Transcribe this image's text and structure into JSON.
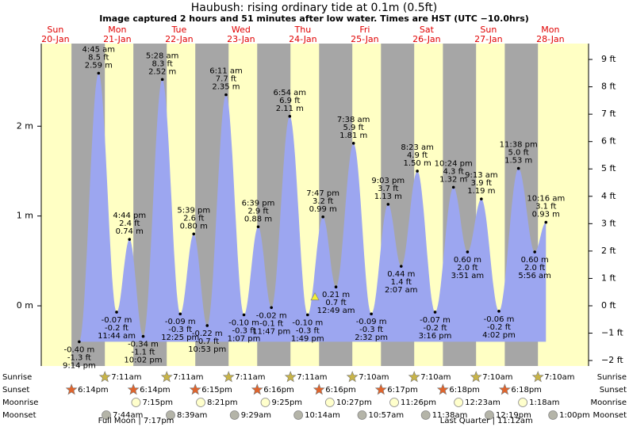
{
  "chart_data": {
    "type": "tide",
    "title": "Haubush: rising  ordinary tide at 0.1m (0.5ft)",
    "subtitle": "Image captured 2 hours and 51 minutes after low water. Times are HST (UTC −10.0hrs)",
    "day_names": [
      "Sun",
      "Mon",
      "Tue",
      "Wed",
      "Thu",
      "Fri",
      "Sat",
      "Sun",
      "Mon"
    ],
    "day_dates": [
      "20-Jan",
      "21-Jan",
      "22-Jan",
      "23-Jan",
      "24-Jan",
      "25-Jan",
      "26-Jan",
      "27-Jan",
      "28-Jan"
    ],
    "x": [
      21.23,
      28.75,
      35.73,
      40.73,
      46.03,
      53.47,
      60.42,
      65.65,
      70.88,
      78.18,
      85.12,
      90.65,
      95.78,
      102.9,
      109.82,
      115.78,
      120.82,
      127.63,
      134.53,
      141.05,
      146.12,
      152.38,
      159.27,
      166.4,
      171.85,
      177.22,
      184.03,
      191.63,
      197.93,
      202.27
    ],
    "values": [
      -0.4,
      2.59,
      -0.07,
      0.74,
      -0.34,
      2.52,
      -0.09,
      0.8,
      -0.22,
      2.35,
      -0.1,
      0.88,
      -0.02,
      2.11,
      -0.1,
      0.99,
      0.21,
      1.81,
      -0.09,
      1.13,
      0.44,
      1.5,
      -0.07,
      1.32,
      0.6,
      1.19,
      -0.06,
      1.53,
      0.6,
      0.93
    ],
    "value_labels": [
      "-0.40 m",
      "2.59 m",
      "-0.07 m",
      "0.74 m",
      "-0.34 m",
      "2.52 m",
      "-0.09 m",
      "0.80 m",
      "-0.22 m",
      "2.35 m",
      "-0.10 m",
      "0.88 m",
      "-0.02 m",
      "2.11 m",
      "-0.10 m",
      "0.99 m",
      "0.21 m",
      "1.81 m",
      "-0.09 m",
      "1.13 m",
      "0.44 m",
      "1.50 m",
      "-0.07 m",
      "1.32 m",
      "0.60 m",
      "1.19 m",
      "-0.06 m",
      "1.53 m",
      "0.60 m",
      "0.93 m"
    ],
    "feet_labels": [
      "-1.3 ft",
      "8.5 ft",
      "-0.2 ft",
      "2.4 ft",
      "-1.1 ft",
      "8.3 ft",
      "-0.3 ft",
      "2.6 ft",
      "-0.7 ft",
      "7.7 ft",
      "-0.3 ft",
      "2.9 ft",
      "-0.1 ft",
      "6.9 ft",
      "-0.3 ft",
      "3.2 ft",
      "0.7 ft",
      "5.9 ft",
      "-0.3 ft",
      "3.7 ft",
      "1.4 ft",
      "4.9 ft",
      "-0.2 ft",
      "4.3 ft",
      "2.0 ft",
      "3.9 ft",
      "-0.2 ft",
      "5.0 ft",
      "2.0 ft",
      "3.1 ft"
    ],
    "time_labels": [
      "9:14 pm",
      "4:45 am",
      "11:44 am",
      "4:44 pm",
      "10:02 pm",
      "5:28 am",
      "12:25 pm",
      "5:39 pm",
      "10:53 pm",
      "6:11 am",
      "1:07 pm",
      "6:39 pm",
      "11:47 pm",
      "6:54 am",
      "1:49 pm",
      "7:47 pm",
      "12:49 am",
      "7:38 am",
      "2:32 pm",
      "9:03 pm",
      "2:07 am",
      "8:23 am",
      "3:16 pm",
      "10:24 pm",
      "3:51 am",
      "9:13 am",
      "4:02 pm",
      "11:38 pm",
      "5:56 am",
      "10:16 am"
    ],
    "color": "#9ca6f0",
    "day_color": "#ffffc4",
    "night_color": "#a6a6a6",
    "xlim": [
      6.5,
      218.8
    ],
    "ylim": [
      -0.67,
      2.92
    ],
    "yticks": [
      {
        "value": 0,
        "label": "0 m"
      },
      {
        "value": 1,
        "label": "1 m"
      },
      {
        "value": 2,
        "label": "2 m"
      }
    ],
    "y2lim": [
      -2.2,
      9.58
    ],
    "y2ticks": [
      {
        "value": -2,
        "label": "−2 ft"
      },
      {
        "value": -1,
        "label": "−1 ft"
      },
      {
        "value": 0,
        "label": "0 ft"
      },
      {
        "value": 1,
        "label": "1 ft"
      },
      {
        "value": 2,
        "label": "2 ft"
      },
      {
        "value": 3,
        "label": "3 ft"
      },
      {
        "value": 4,
        "label": "4 ft"
      },
      {
        "value": 5,
        "label": "5 ft"
      },
      {
        "value": 6,
        "label": "6 ft"
      },
      {
        "value": 7,
        "label": "7 ft"
      },
      {
        "value": 8,
        "label": "8 ft"
      },
      {
        "value": 9,
        "label": "9 ft"
      }
    ],
    "current": {
      "x": 112.67,
      "value": 0.1,
      "color": "#f4f030"
    },
    "events": [
      {
        "label": "Sunrise",
        "color": "#c8b448",
        "shape": "star",
        "x": [
          31.18,
          55.18,
          79.18,
          103.18,
          127.17,
          151.17,
          175.17,
          199.17
        ],
        "times": [
          "7:11am",
          "7:11am",
          "7:11am",
          "7:11am",
          "7:10am",
          "7:10am",
          "7:10am",
          "7:10am"
        ]
      },
      {
        "label": "Sunset",
        "color": "#e0642c",
        "shape": "star",
        "x": [
          18.23,
          42.23,
          66.25,
          90.27,
          114.27,
          138.28,
          162.3,
          186.3
        ],
        "times": [
          "6:14pm",
          "6:14pm",
          "6:15pm",
          "6:16pm",
          "6:16pm",
          "6:17pm",
          "6:18pm",
          "6:18pm"
        ]
      },
      {
        "label": "Moonrise",
        "color": "#ffffcc",
        "shape": "circle",
        "x": [
          43.25,
          68.35,
          93.42,
          118.45,
          143.43,
          168.38,
          193.3
        ],
        "times": [
          "7:15pm",
          "8:21pm",
          "9:25pm",
          "10:27pm",
          "11:26pm",
          "12:23am",
          "1:18am"
        ]
      },
      {
        "label": "Moonset",
        "color": "#b4b4a8",
        "shape": "circle",
        "x": [
          31.73,
          56.65,
          81.48,
          106.23,
          130.95,
          155.63,
          180.32,
          205
        ],
        "times": [
          "7:44am",
          "8:39am",
          "9:29am",
          "10:14am",
          "10:57am",
          "11:38am",
          "12:19pm",
          "1:00pm"
        ]
      }
    ],
    "phases": [
      {
        "label": "Full Moon | 7:17pm",
        "x": 43.28
      },
      {
        "label": "Last Quarter | 11:12am",
        "x": 179.2
      }
    ]
  }
}
